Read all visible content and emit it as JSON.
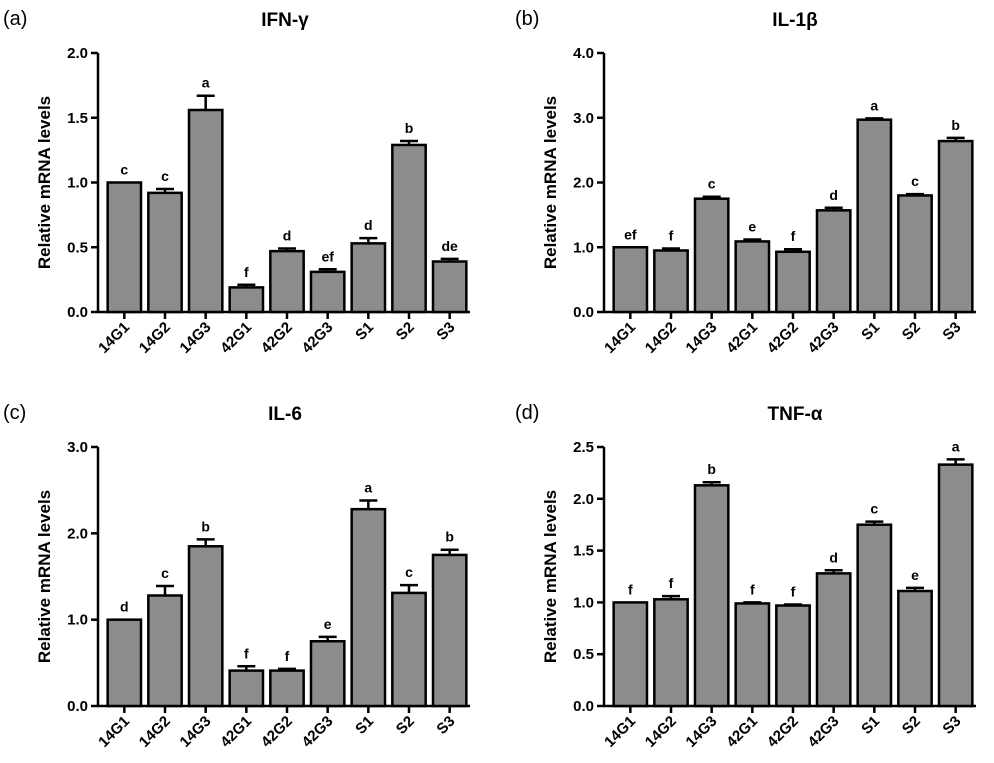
{
  "chart_data": [
    {
      "type": "bar",
      "panel_label": "(a)",
      "title": "IFN-γ",
      "ylabel": "Relative mRNA levels",
      "xlabel": "",
      "categories": [
        "14G1",
        "14G2",
        "14G3",
        "42G1",
        "42G2",
        "42G3",
        "S1",
        "S2",
        "S3"
      ],
      "values": [
        1.0,
        0.92,
        1.56,
        0.19,
        0.47,
        0.31,
        0.53,
        1.29,
        0.39
      ],
      "errors": [
        0.0,
        0.03,
        0.11,
        0.02,
        0.02,
        0.02,
        0.04,
        0.03,
        0.02
      ],
      "significance": [
        "c",
        "c",
        "a",
        "f",
        "d",
        "ef",
        "d",
        "b",
        "de"
      ],
      "ylim": [
        0,
        2.0
      ],
      "yticks": [
        "0.0",
        "0.5",
        "1.0",
        "1.5",
        "2.0"
      ],
      "bar_color": "#8c8c8c"
    },
    {
      "type": "bar",
      "panel_label": "(b)",
      "title": "IL-1β",
      "ylabel": "Relative mRNA levels",
      "xlabel": "",
      "categories": [
        "14G1",
        "14G2",
        "14G3",
        "42G1",
        "42G2",
        "42G3",
        "S1",
        "S2",
        "S3"
      ],
      "values": [
        1.0,
        0.95,
        1.75,
        1.09,
        0.93,
        1.57,
        2.97,
        1.8,
        2.64
      ],
      "errors": [
        0.0,
        0.03,
        0.03,
        0.03,
        0.04,
        0.04,
        0.02,
        0.02,
        0.05
      ],
      "significance": [
        "ef",
        "f",
        "c",
        "e",
        "f",
        "d",
        "a",
        "c",
        "b"
      ],
      "ylim": [
        0,
        4.0
      ],
      "yticks": [
        "0.0",
        "1.0",
        "2.0",
        "3.0",
        "4.0"
      ],
      "bar_color": "#8c8c8c"
    },
    {
      "type": "bar",
      "panel_label": "(c)",
      "title": "IL-6",
      "ylabel": "Relative mRNA levels",
      "xlabel": "",
      "categories": [
        "14G1",
        "14G2",
        "14G3",
        "42G1",
        "42G2",
        "42G3",
        "S1",
        "S2",
        "S3"
      ],
      "values": [
        1.0,
        1.28,
        1.85,
        0.41,
        0.41,
        0.75,
        2.28,
        1.31,
        1.75
      ],
      "errors": [
        0.0,
        0.11,
        0.08,
        0.05,
        0.02,
        0.05,
        0.1,
        0.09,
        0.06
      ],
      "significance": [
        "d",
        "c",
        "b",
        "f",
        "f",
        "e",
        "a",
        "c",
        "b"
      ],
      "ylim": [
        0,
        3.0
      ],
      "yticks": [
        "0.0",
        "1.0",
        "2.0",
        "3.0"
      ],
      "bar_color": "#8c8c8c"
    },
    {
      "type": "bar",
      "panel_label": "(d)",
      "title": "TNF-α",
      "ylabel": "Relative mRNA levels",
      "xlabel": "",
      "categories": [
        "14G1",
        "14G2",
        "14G3",
        "42G1",
        "42G2",
        "42G3",
        "S1",
        "S2",
        "S3"
      ],
      "values": [
        1.0,
        1.03,
        2.13,
        0.99,
        0.97,
        1.28,
        1.75,
        1.11,
        2.33
      ],
      "errors": [
        0.0,
        0.03,
        0.03,
        0.01,
        0.01,
        0.03,
        0.03,
        0.03,
        0.05
      ],
      "significance": [
        "f",
        "f",
        "b",
        "f",
        "f",
        "d",
        "c",
        "e",
        "a"
      ],
      "ylim": [
        0,
        2.5
      ],
      "yticks": [
        "0.0",
        "0.5",
        "1.0",
        "1.5",
        "2.0",
        "2.5"
      ],
      "bar_color": "#8c8c8c"
    }
  ]
}
